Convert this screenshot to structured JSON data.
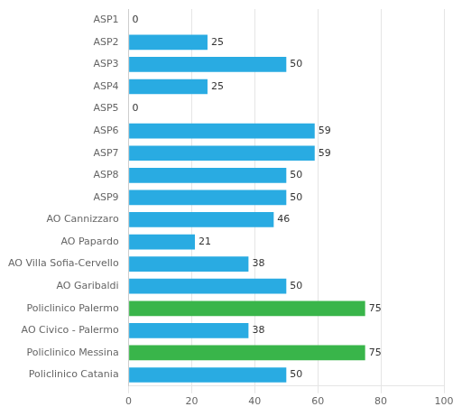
{
  "chart_data": {
    "type": "bar",
    "orientation": "horizontal",
    "categories": [
      "ASP1",
      "ASP2",
      "ASP3",
      "ASP4",
      "ASP5",
      "ASP6",
      "ASP7",
      "ASP8",
      "ASP9",
      "AO Cannizzaro",
      "AO Papardo",
      "AO Villa Sofia-Cervello",
      "AO Garibaldi",
      "Policlinico Palermo",
      "AO Civico - Palermo",
      "Policlinico Messina",
      "Policlinico Catania"
    ],
    "values": [
      0,
      25,
      50,
      25,
      0,
      59,
      59,
      50,
      50,
      46,
      21,
      38,
      50,
      75,
      38,
      75,
      50
    ],
    "colors": [
      "#C1272D",
      "#29ABE2",
      "#29ABE2",
      "#29ABE2",
      "#C1272D",
      "#29ABE2",
      "#29ABE2",
      "#29ABE2",
      "#29ABE2",
      "#29ABE2",
      "#29ABE2",
      "#29ABE2",
      "#29ABE2",
      "#39B54A",
      "#29ABE2",
      "#39B54A",
      "#29ABE2"
    ],
    "xlim": [
      0,
      100
    ],
    "xticks": [
      0,
      20,
      40,
      60,
      80,
      100
    ],
    "grid": true,
    "data_labels": true
  }
}
